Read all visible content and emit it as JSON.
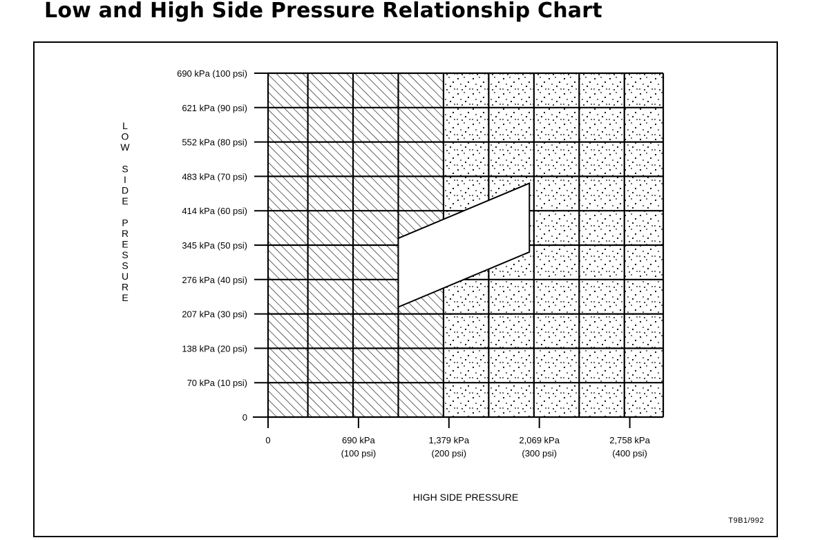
{
  "header": {
    "title": "Low and High Side Pressure Relationship Chart"
  },
  "chart_data": {
    "type": "area",
    "title": "Low and High Side Pressure Relationship Chart",
    "xlabel": "HIGH SIDE PRESSURE",
    "ylabel": "LOW SIDE PRESSURE",
    "xlim": [
      0,
      437
    ],
    "ylim": [
      0,
      100
    ],
    "grid": true,
    "x_ticks": [
      {
        "value": 0,
        "kpa": "0",
        "psi": ""
      },
      {
        "value": 100,
        "kpa": "690 kPa",
        "psi": "(100 psi)"
      },
      {
        "value": 200,
        "kpa": "1,379 kPa",
        "psi": "(200 psi)"
      },
      {
        "value": 300,
        "kpa": "2,069 kPa",
        "psi": "(300 psi)"
      },
      {
        "value": 400,
        "kpa": "2,758 kPa",
        "psi": "(400 psi)"
      }
    ],
    "y_ticks": [
      {
        "value": 0,
        "label": "0"
      },
      {
        "value": 10,
        "label": "70 kPa (10 psi)"
      },
      {
        "value": 20,
        "label": "138 kPa (20 psi)"
      },
      {
        "value": 30,
        "label": "207 kPa (30 psi)"
      },
      {
        "value": 40,
        "label": "276 kPa (40 psi)"
      },
      {
        "value": 50,
        "label": "345 kPa (50 psi)"
      },
      {
        "value": 60,
        "label": "414 kPa (60 psi)"
      },
      {
        "value": 70,
        "label": "483 kPa (70 psi)"
      },
      {
        "value": 80,
        "label": "552 kPa (80 psi)"
      },
      {
        "value": 90,
        "label": "621 kPa (90 psi)"
      },
      {
        "value": 100,
        "label": "690 kPa (100 psi)"
      }
    ],
    "grid_x": [
      0,
      44,
      94,
      144,
      194,
      244,
      294,
      344,
      394,
      437
    ],
    "grid_y": [
      0,
      10,
      20,
      30,
      40,
      50,
      60,
      70,
      80,
      90,
      100
    ],
    "regions": [
      {
        "fill": "hatched",
        "x": [
          0,
          194
        ],
        "y": [
          0,
          100
        ]
      },
      {
        "fill": "dotted",
        "x": [
          194,
          437
        ],
        "y": [
          0,
          100
        ]
      }
    ],
    "normal_zone": [
      {
        "x": 144,
        "y": 32
      },
      {
        "x": 144,
        "y": 52
      },
      {
        "x": 289,
        "y": 68
      },
      {
        "x": 289,
        "y": 48
      }
    ],
    "note": "T9B1/992"
  }
}
